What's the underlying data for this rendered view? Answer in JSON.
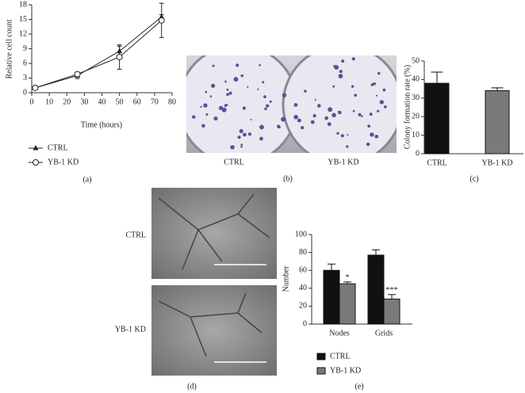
{
  "chart_data": [
    {
      "type": "line",
      "panel": "(a)",
      "x_label": "Time (hours)",
      "y_label": "Relative cell count",
      "x": [
        2,
        26,
        50,
        74
      ],
      "series": [
        {
          "name": "CTRL",
          "color": "#222",
          "marker": "triangle",
          "values": [
            1,
            3.5,
            8.5,
            15.5
          ],
          "errors": [
            0.2,
            0.6,
            1,
            0.5
          ]
        },
        {
          "name": "YB-1 KD",
          "color": "#222",
          "marker": "circle",
          "values": [
            1,
            3.8,
            7.3,
            14.8
          ],
          "errors": [
            0.2,
            0.3,
            2.5,
            3.5
          ]
        }
      ],
      "xlim": [
        0,
        80
      ],
      "xticks": [
        0,
        10,
        20,
        30,
        40,
        50,
        60,
        70,
        80
      ],
      "ylim": [
        0,
        18
      ],
      "yticks": [
        0,
        3,
        6,
        9,
        12,
        15,
        18
      ],
      "grid": false
    },
    {
      "type": "bar",
      "panel": "(c)",
      "y_label": "Colony formation rate (%)",
      "categories": [
        "CTRL",
        "YB-1 KD"
      ],
      "values": [
        38,
        34
      ],
      "errors": [
        6,
        1.5
      ],
      "colors": [
        "#111111",
        "#7a7a7a"
      ],
      "ylim": [
        0,
        50
      ],
      "yticks": [
        0,
        10,
        20,
        30,
        40,
        50
      ],
      "grid": false
    },
    {
      "type": "bar",
      "panel": "(e)",
      "y_label": "Number",
      "categories": [
        "Nodes",
        "Grids"
      ],
      "series": [
        {
          "name": "CTRL",
          "color": "#111111",
          "values": [
            60,
            77
          ],
          "errors": [
            7,
            6
          ]
        },
        {
          "name": "YB-1 KD",
          "color": "#7a7a7a",
          "values": [
            45,
            28
          ],
          "errors": [
            2,
            5
          ],
          "labels": [
            "*",
            "***"
          ]
        }
      ],
      "ylim": [
        0,
        100
      ],
      "yticks": [
        0,
        20,
        40,
        60,
        80,
        100
      ],
      "grid": false
    }
  ],
  "image_panels": [
    {
      "panel": "(b)",
      "captions": [
        "CTRL",
        "YB-1 KD"
      ]
    },
    {
      "panel": "(d)",
      "captions": [
        "CTRL",
        "YB-1 KD"
      ]
    }
  ]
}
